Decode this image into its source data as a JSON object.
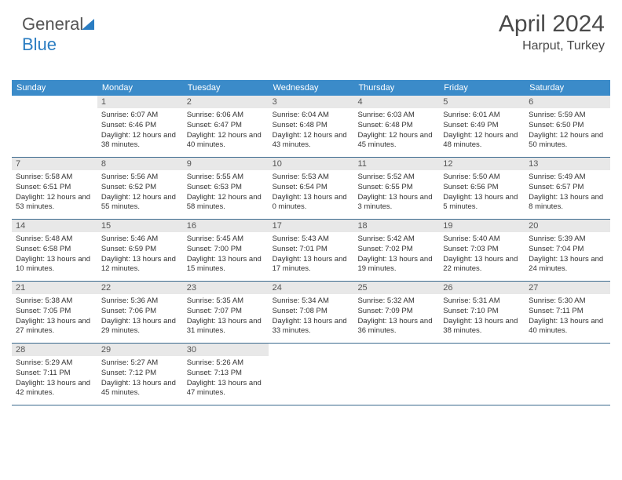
{
  "brand": {
    "part1": "General",
    "part2": "Blue"
  },
  "header": {
    "month_year": "April 2024",
    "location": "Harput, Turkey"
  },
  "colors": {
    "header_bg": "#3b8bc9",
    "header_fg": "#ffffff",
    "daynum_bg": "#e8e8e8",
    "text": "#333333",
    "rule": "#3b6a8e"
  },
  "dow": [
    "Sunday",
    "Monday",
    "Tuesday",
    "Wednesday",
    "Thursday",
    "Friday",
    "Saturday"
  ],
  "weeks": [
    [
      null,
      {
        "n": "1",
        "sr": "6:07 AM",
        "ss": "6:46 PM",
        "dl": "12 hours and 38 minutes."
      },
      {
        "n": "2",
        "sr": "6:06 AM",
        "ss": "6:47 PM",
        "dl": "12 hours and 40 minutes."
      },
      {
        "n": "3",
        "sr": "6:04 AM",
        "ss": "6:48 PM",
        "dl": "12 hours and 43 minutes."
      },
      {
        "n": "4",
        "sr": "6:03 AM",
        "ss": "6:48 PM",
        "dl": "12 hours and 45 minutes."
      },
      {
        "n": "5",
        "sr": "6:01 AM",
        "ss": "6:49 PM",
        "dl": "12 hours and 48 minutes."
      },
      {
        "n": "6",
        "sr": "5:59 AM",
        "ss": "6:50 PM",
        "dl": "12 hours and 50 minutes."
      }
    ],
    [
      {
        "n": "7",
        "sr": "5:58 AM",
        "ss": "6:51 PM",
        "dl": "12 hours and 53 minutes."
      },
      {
        "n": "8",
        "sr": "5:56 AM",
        "ss": "6:52 PM",
        "dl": "12 hours and 55 minutes."
      },
      {
        "n": "9",
        "sr": "5:55 AM",
        "ss": "6:53 PM",
        "dl": "12 hours and 58 minutes."
      },
      {
        "n": "10",
        "sr": "5:53 AM",
        "ss": "6:54 PM",
        "dl": "13 hours and 0 minutes."
      },
      {
        "n": "11",
        "sr": "5:52 AM",
        "ss": "6:55 PM",
        "dl": "13 hours and 3 minutes."
      },
      {
        "n": "12",
        "sr": "5:50 AM",
        "ss": "6:56 PM",
        "dl": "13 hours and 5 minutes."
      },
      {
        "n": "13",
        "sr": "5:49 AM",
        "ss": "6:57 PM",
        "dl": "13 hours and 8 minutes."
      }
    ],
    [
      {
        "n": "14",
        "sr": "5:48 AM",
        "ss": "6:58 PM",
        "dl": "13 hours and 10 minutes."
      },
      {
        "n": "15",
        "sr": "5:46 AM",
        "ss": "6:59 PM",
        "dl": "13 hours and 12 minutes."
      },
      {
        "n": "16",
        "sr": "5:45 AM",
        "ss": "7:00 PM",
        "dl": "13 hours and 15 minutes."
      },
      {
        "n": "17",
        "sr": "5:43 AM",
        "ss": "7:01 PM",
        "dl": "13 hours and 17 minutes."
      },
      {
        "n": "18",
        "sr": "5:42 AM",
        "ss": "7:02 PM",
        "dl": "13 hours and 19 minutes."
      },
      {
        "n": "19",
        "sr": "5:40 AM",
        "ss": "7:03 PM",
        "dl": "13 hours and 22 minutes."
      },
      {
        "n": "20",
        "sr": "5:39 AM",
        "ss": "7:04 PM",
        "dl": "13 hours and 24 minutes."
      }
    ],
    [
      {
        "n": "21",
        "sr": "5:38 AM",
        "ss": "7:05 PM",
        "dl": "13 hours and 27 minutes."
      },
      {
        "n": "22",
        "sr": "5:36 AM",
        "ss": "7:06 PM",
        "dl": "13 hours and 29 minutes."
      },
      {
        "n": "23",
        "sr": "5:35 AM",
        "ss": "7:07 PM",
        "dl": "13 hours and 31 minutes."
      },
      {
        "n": "24",
        "sr": "5:34 AM",
        "ss": "7:08 PM",
        "dl": "13 hours and 33 minutes."
      },
      {
        "n": "25",
        "sr": "5:32 AM",
        "ss": "7:09 PM",
        "dl": "13 hours and 36 minutes."
      },
      {
        "n": "26",
        "sr": "5:31 AM",
        "ss": "7:10 PM",
        "dl": "13 hours and 38 minutes."
      },
      {
        "n": "27",
        "sr": "5:30 AM",
        "ss": "7:11 PM",
        "dl": "13 hours and 40 minutes."
      }
    ],
    [
      {
        "n": "28",
        "sr": "5:29 AM",
        "ss": "7:11 PM",
        "dl": "13 hours and 42 minutes."
      },
      {
        "n": "29",
        "sr": "5:27 AM",
        "ss": "7:12 PM",
        "dl": "13 hours and 45 minutes."
      },
      {
        "n": "30",
        "sr": "5:26 AM",
        "ss": "7:13 PM",
        "dl": "13 hours and 47 minutes."
      },
      null,
      null,
      null,
      null
    ]
  ],
  "labels": {
    "sunrise": "Sunrise:",
    "sunset": "Sunset:",
    "daylight": "Daylight:"
  }
}
